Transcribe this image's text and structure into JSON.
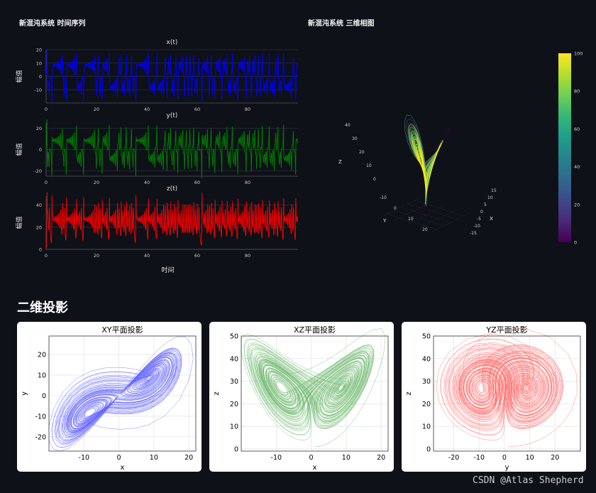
{
  "header": {
    "ts_title": "新混沌系统 时间序列",
    "phase_title": "新混沌系统 三维相图"
  },
  "colors": {
    "x": "#0000ff",
    "y": "#008000",
    "z": "#ff0000",
    "xy": "#6464ff",
    "xz": "#64b464",
    "yz": "#ff6464"
  },
  "chart_data": [
    {
      "type": "line",
      "id": "x_t",
      "title": "x(t)",
      "ylabel": "幅值",
      "xlabel": "",
      "xlim": [
        0,
        100
      ],
      "ylim": [
        -20,
        20
      ],
      "xticks": [
        "0",
        "20",
        "40",
        "60",
        "80"
      ],
      "yticks": [
        "20",
        "10",
        "0",
        "-10"
      ],
      "series": [
        {
          "values": []
        }
      ]
    },
    {
      "type": "line",
      "id": "y_t",
      "title": "y(t)",
      "ylabel": "幅值",
      "xlabel": "",
      "xlim": [
        0,
        100
      ],
      "ylim": [
        -25,
        25
      ],
      "xticks": [
        "0",
        "20",
        "40",
        "60",
        "80"
      ],
      "yticks": [
        "20",
        "0",
        "-20"
      ],
      "series": [
        {
          "values": []
        }
      ]
    },
    {
      "type": "line",
      "id": "z_t",
      "title": "z(t)",
      "ylabel": "幅值",
      "xlabel": "时间",
      "xlim": [
        0,
        100
      ],
      "ylim": [
        0,
        48
      ],
      "xticks": [
        "0",
        "20",
        "40",
        "60",
        "80"
      ],
      "yticks": [
        "40",
        "20",
        "0"
      ],
      "series": [
        {
          "values": []
        }
      ]
    },
    {
      "type": "scatter",
      "id": "phase3d",
      "axis_labels": {
        "x": "X",
        "y": "Y",
        "z": "Z"
      },
      "x_ticks": [
        "15",
        "10",
        "5",
        "0",
        "-5",
        "-10",
        "-15"
      ],
      "y_ticks": [
        "-10",
        "0",
        "10",
        "20"
      ],
      "z_ticks": [
        "40",
        "30",
        "20",
        "10",
        "0"
      ],
      "colorbar": {
        "range": [
          0,
          100
        ],
        "ticks": [
          "100",
          "80",
          "60",
          "40",
          "20",
          "0"
        ],
        "colorscale": "viridis"
      }
    },
    {
      "type": "line",
      "id": "xy",
      "title": "XY平面投影",
      "xlabel": "x",
      "ylabel": "y",
      "xlim": [
        -20,
        22
      ],
      "ylim": [
        -27,
        29
      ],
      "xticks": [
        "-10",
        "0",
        "10",
        "20"
      ],
      "yticks": [
        "20",
        "10",
        "0",
        "-10",
        "-20"
      ]
    },
    {
      "type": "line",
      "id": "xz",
      "title": "XZ平面投影",
      "xlabel": "x",
      "ylabel": "z",
      "xlim": [
        -20,
        22
      ],
      "ylim": [
        -1,
        50
      ],
      "xticks": [
        "-10",
        "0",
        "10",
        "20"
      ],
      "yticks": [
        "50",
        "40",
        "30",
        "20",
        "10",
        "0"
      ]
    },
    {
      "type": "line",
      "id": "yz",
      "title": "YZ平面投影",
      "xlabel": "y",
      "ylabel": "z",
      "xlim": [
        -28,
        30
      ],
      "ylim": [
        -1,
        50
      ],
      "xticks": [
        "-20",
        "-10",
        "0",
        "10",
        "20"
      ],
      "yticks": [
        "50",
        "40",
        "30",
        "20",
        "10",
        "0"
      ]
    }
  ],
  "section": {
    "title": "二维投影"
  },
  "watermark": "CSDN @Atlas Shepherd"
}
